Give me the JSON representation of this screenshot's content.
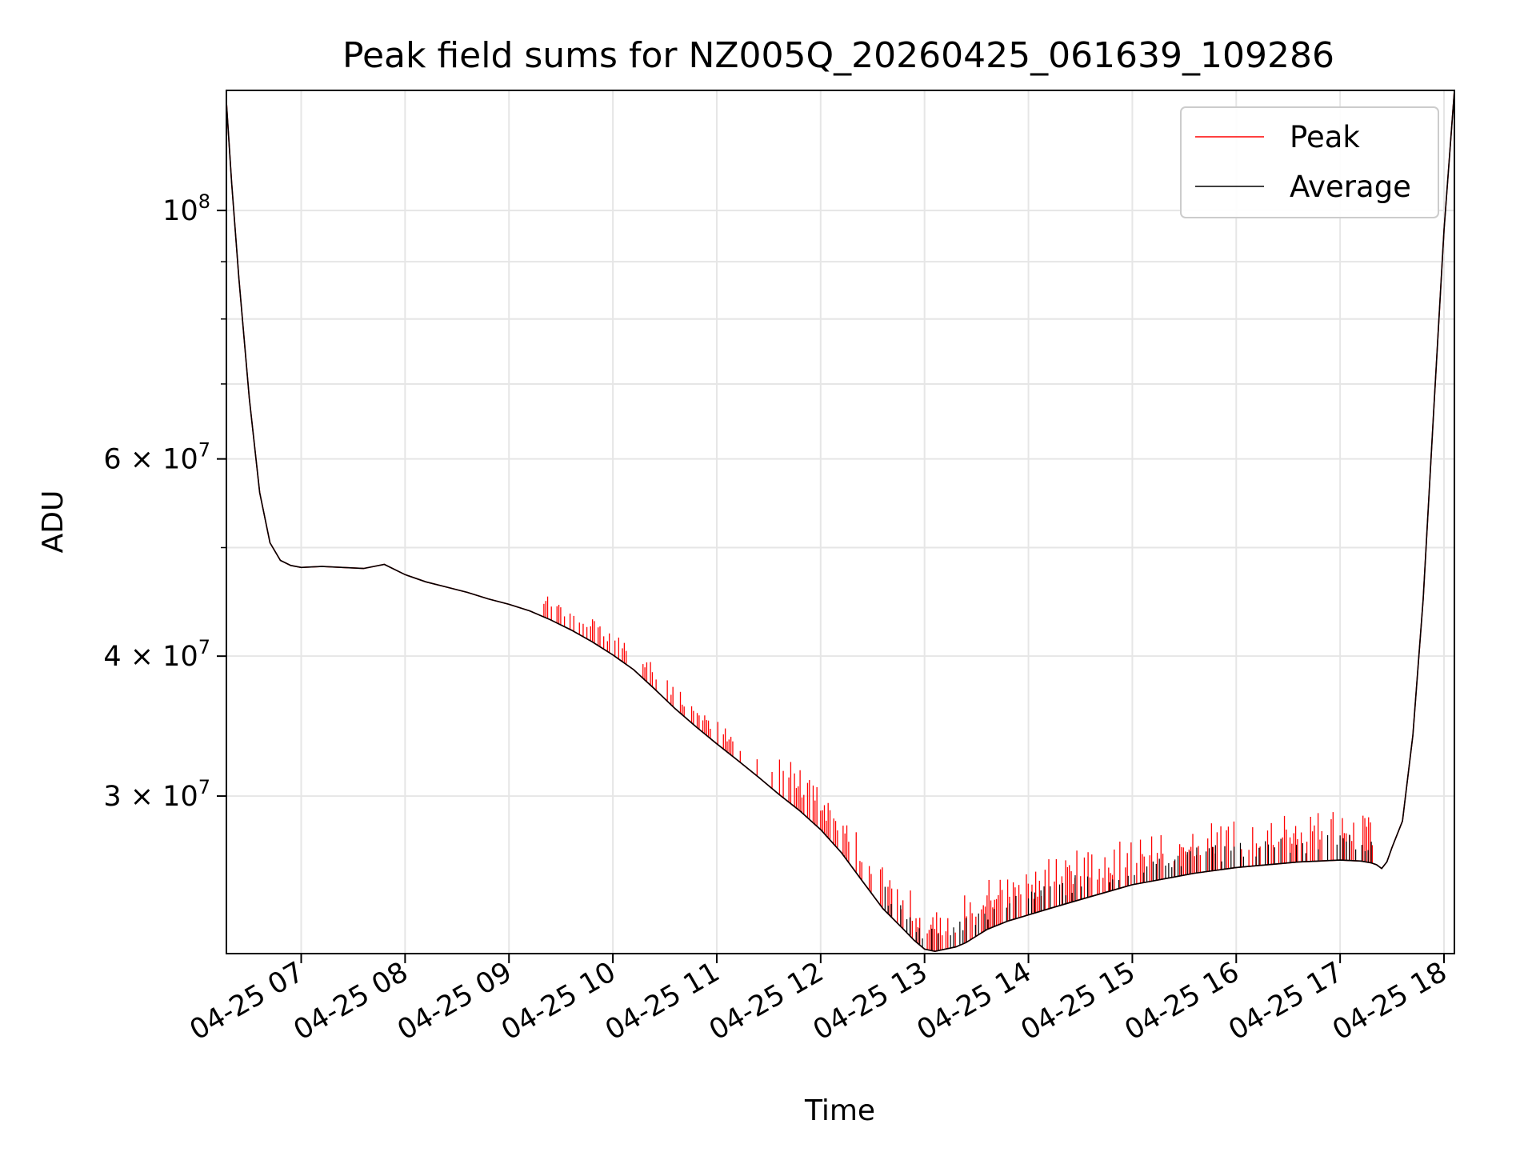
{
  "chart_data": {
    "type": "line",
    "title": "Peak field sums for NZ005Q_20260425_061639_109286",
    "xlabel": "Time",
    "ylabel": "ADU",
    "yscale": "log",
    "xlim": [
      6.28,
      18.1
    ],
    "ylim": [
      21700000,
      128000000
    ],
    "grid": true,
    "legend_position": "top-right",
    "x_ticks": [
      {
        "value": 7,
        "label": "04-25 07"
      },
      {
        "value": 8,
        "label": "04-25 08"
      },
      {
        "value": 9,
        "label": "04-25 09"
      },
      {
        "value": 10,
        "label": "04-25 10"
      },
      {
        "value": 11,
        "label": "04-25 11"
      },
      {
        "value": 12,
        "label": "04-25 12"
      },
      {
        "value": 13,
        "label": "04-25 13"
      },
      {
        "value": 14,
        "label": "04-25 14"
      },
      {
        "value": 15,
        "label": "04-25 15"
      },
      {
        "value": 16,
        "label": "04-25 16"
      },
      {
        "value": 17,
        "label": "04-25 17"
      },
      {
        "value": 18,
        "label": "04-25 18"
      }
    ],
    "y_major_ticks": [
      {
        "value": 100000000,
        "base": "10",
        "exp": "8",
        "mant": ""
      },
      {
        "value": 60000000,
        "base": "10",
        "exp": "7",
        "mant": "6 × "
      },
      {
        "value": 40000000,
        "base": "10",
        "exp": "7",
        "mant": "4 × "
      },
      {
        "value": 30000000,
        "base": "10",
        "exp": "7",
        "mant": "3 × "
      }
    ],
    "y_minor_gridlines": [
      50000000,
      70000000,
      80000000,
      90000000
    ],
    "series": [
      {
        "name": "Peak",
        "color": "#ff0000",
        "x": [
          6.28,
          6.33,
          6.4,
          6.5,
          6.6,
          6.7,
          6.8,
          6.9,
          7.0,
          7.2,
          7.4,
          7.6,
          7.8,
          8.0,
          8.2,
          8.4,
          8.6,
          8.8,
          9.0,
          9.2,
          9.4,
          9.6,
          9.8,
          10.0,
          10.2,
          10.4,
          10.6,
          10.8,
          11.0,
          11.2,
          11.4,
          11.6,
          11.8,
          12.0,
          12.2,
          12.4,
          12.6,
          12.8,
          12.9,
          13.0,
          13.1,
          13.2,
          13.3,
          13.4,
          13.5,
          13.6,
          13.8,
          14.0,
          14.2,
          14.4,
          14.6,
          14.8,
          15.0,
          15.2,
          15.4,
          15.6,
          15.8,
          16.0,
          16.2,
          16.4,
          16.6,
          16.8,
          17.0,
          17.2,
          17.3,
          17.35,
          17.4,
          17.45,
          17.5,
          17.6,
          17.7,
          17.8,
          17.9,
          18.0,
          18.1
        ],
        "y": [
          125000000,
          106000000,
          87000000,
          68000000,
          56000000,
          50500000,
          48700000,
          48200000,
          48000000,
          48100000,
          48000000,
          47900000,
          48300000,
          47300000,
          46600000,
          46100000,
          45600000,
          45000000,
          44500000,
          43900000,
          43100000,
          42200000,
          41200000,
          40100000,
          38900000,
          37400000,
          35900000,
          34600000,
          33400000,
          32300000,
          31200000,
          30100000,
          29100000,
          28000000,
          26700000,
          25200000,
          23800000,
          22800000,
          22300000,
          21900000,
          21800000,
          21900000,
          22000000,
          22200000,
          22500000,
          22800000,
          23200000,
          23500000,
          23800000,
          24100000,
          24400000,
          24700000,
          25000000,
          25200000,
          25400000,
          25600000,
          25750000,
          25900000,
          26000000,
          26100000,
          26200000,
          26250000,
          26300000,
          26250000,
          26150000,
          26050000,
          25850000,
          26200000,
          27000000,
          28500000,
          34000000,
          45000000,
          66000000,
          96000000,
          128000000
        ]
      },
      {
        "name": "Average",
        "color": "#000000",
        "x": [
          6.28,
          6.33,
          6.4,
          6.5,
          6.6,
          6.7,
          6.8,
          6.9,
          7.0,
          7.2,
          7.4,
          7.6,
          7.8,
          8.0,
          8.2,
          8.4,
          8.6,
          8.8,
          9.0,
          9.2,
          9.4,
          9.6,
          9.8,
          10.0,
          10.2,
          10.4,
          10.6,
          10.8,
          11.0,
          11.2,
          11.4,
          11.6,
          11.8,
          12.0,
          12.2,
          12.4,
          12.6,
          12.8,
          12.9,
          13.0,
          13.1,
          13.2,
          13.3,
          13.4,
          13.5,
          13.6,
          13.8,
          14.0,
          14.2,
          14.4,
          14.6,
          14.8,
          15.0,
          15.2,
          15.4,
          15.6,
          15.8,
          16.0,
          16.2,
          16.4,
          16.6,
          16.8,
          17.0,
          17.2,
          17.3,
          17.35,
          17.4,
          17.45,
          17.5,
          17.6,
          17.7,
          17.8,
          17.9,
          18.0,
          18.1
        ],
        "y": [
          125000000,
          106000000,
          87000000,
          68000000,
          56000000,
          50500000,
          48700000,
          48200000,
          48000000,
          48100000,
          48000000,
          47900000,
          48300000,
          47300000,
          46600000,
          46100000,
          45600000,
          45000000,
          44500000,
          43900000,
          43100000,
          42200000,
          41200000,
          40100000,
          38900000,
          37400000,
          35900000,
          34600000,
          33400000,
          32300000,
          31200000,
          30100000,
          29100000,
          28000000,
          26700000,
          25200000,
          23800000,
          22800000,
          22300000,
          21900000,
          21800000,
          21900000,
          22000000,
          22200000,
          22500000,
          22800000,
          23200000,
          23500000,
          23800000,
          24100000,
          24400000,
          24700000,
          25000000,
          25200000,
          25400000,
          25600000,
          25750000,
          25900000,
          26000000,
          26100000,
          26200000,
          26250000,
          26300000,
          26250000,
          26150000,
          26050000,
          25850000,
          26200000,
          27000000,
          28500000,
          34000000,
          45000000,
          66000000,
          96000000,
          128000000
        ]
      }
    ]
  }
}
